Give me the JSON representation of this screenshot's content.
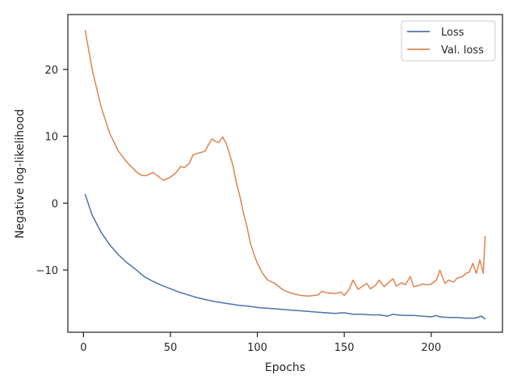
{
  "chart_data": {
    "type": "line",
    "xlabel": "Epochs",
    "ylabel": "Negative log-likelihood",
    "xlim": [
      -9,
      241
    ],
    "ylim": [
      -19.3,
      28.2
    ],
    "xticks": [
      0,
      50,
      100,
      150,
      200
    ],
    "yticks": [
      -10,
      0,
      10,
      20
    ],
    "ytick_labels": [
      "−10",
      "0",
      "10",
      "20"
    ],
    "grid": false,
    "legend": {
      "location": "top-right"
    },
    "series": [
      {
        "name": "Loss",
        "color": "#4c72b0",
        "x": [
          1,
          5,
          10,
          15,
          20,
          25,
          30,
          35,
          40,
          45,
          50,
          55,
          60,
          65,
          70,
          75,
          80,
          85,
          90,
          95,
          100,
          105,
          110,
          115,
          120,
          125,
          130,
          135,
          140,
          145,
          148,
          150,
          155,
          160,
          165,
          170,
          175,
          178,
          180,
          185,
          190,
          195,
          200,
          203,
          205,
          210,
          215,
          220,
          225,
          229,
          231
        ],
        "values": [
          1.3,
          -1.8,
          -4.3,
          -6.2,
          -7.7,
          -8.9,
          -9.9,
          -11.0,
          -11.7,
          -12.3,
          -12.8,
          -13.3,
          -13.7,
          -14.1,
          -14.4,
          -14.7,
          -14.9,
          -15.1,
          -15.3,
          -15.4,
          -15.6,
          -15.7,
          -15.8,
          -15.9,
          -16.0,
          -16.1,
          -16.2,
          -16.3,
          -16.4,
          -16.5,
          -16.4,
          -16.4,
          -16.6,
          -16.6,
          -16.7,
          -16.7,
          -16.9,
          -16.6,
          -16.7,
          -16.8,
          -16.8,
          -16.9,
          -17.0,
          -16.8,
          -17.0,
          -17.1,
          -17.1,
          -17.2,
          -17.2,
          -16.9,
          -17.3
        ]
      },
      {
        "name": "Val. loss",
        "color": "#dd8452",
        "x": [
          1,
          5,
          10,
          15,
          20,
          25,
          30,
          33,
          36,
          40,
          43,
          46,
          50,
          53,
          56,
          58,
          61,
          63,
          66,
          68,
          70,
          72,
          74,
          76,
          78,
          80,
          82,
          84,
          86,
          88,
          90,
          92,
          94,
          96,
          98,
          100,
          103,
          106,
          110,
          115,
          120,
          125,
          130,
          135,
          137,
          140,
          145,
          148,
          150,
          153,
          155,
          158,
          160,
          163,
          165,
          168,
          170,
          173,
          175,
          178,
          180,
          183,
          185,
          188,
          190,
          193,
          195,
          198,
          200,
          203,
          205,
          208,
          210,
          213,
          215,
          218,
          220,
          222,
          224,
          226,
          228,
          230,
          231
        ],
        "values": [
          25.8,
          20.0,
          14.5,
          10.5,
          7.8,
          6.1,
          4.8,
          4.2,
          4.1,
          4.6,
          4.0,
          3.4,
          3.9,
          4.5,
          5.5,
          5.3,
          6.0,
          7.2,
          7.5,
          7.6,
          7.8,
          8.8,
          9.6,
          9.2,
          9.1,
          9.9,
          9.0,
          7.4,
          5.6,
          3.0,
          1.0,
          -1.5,
          -3.5,
          -6.0,
          -7.6,
          -9.0,
          -10.5,
          -11.5,
          -12.0,
          -13.0,
          -13.5,
          -13.8,
          -13.9,
          -13.7,
          -13.2,
          -13.4,
          -13.5,
          -13.3,
          -13.8,
          -12.8,
          -11.5,
          -12.9,
          -12.5,
          -12.0,
          -12.8,
          -12.3,
          -11.5,
          -12.5,
          -12.0,
          -11.3,
          -12.4,
          -11.9,
          -12.2,
          -11.0,
          -12.5,
          -12.3,
          -12.1,
          -12.2,
          -12.1,
          -11.5,
          -10.0,
          -12.0,
          -11.5,
          -11.8,
          -11.2,
          -11.0,
          -10.5,
          -10.3,
          -9.0,
          -10.5,
          -8.5,
          -10.5,
          -5.0
        ]
      }
    ]
  }
}
